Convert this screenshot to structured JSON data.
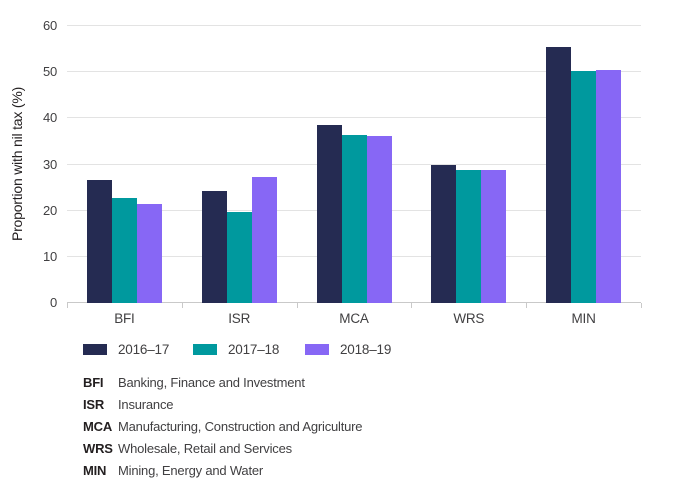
{
  "chart_data": {
    "type": "bar",
    "title": "",
    "xlabel": "",
    "ylabel": "Proportion with nil tax (%)",
    "ylim": [
      0,
      60
    ],
    "yticks": [
      0,
      10,
      20,
      30,
      40,
      50,
      60
    ],
    "grid": true,
    "legend_position": "bottom",
    "categories": [
      "BFI",
      "ISR",
      "MCA",
      "WRS",
      "MIN"
    ],
    "series": [
      {
        "name": "2016–17",
        "color": "#252b52",
        "values": [
          26.7,
          24.3,
          38.6,
          30.0,
          55.4
        ]
      },
      {
        "name": "2017–18",
        "color": "#00999e",
        "values": [
          22.8,
          19.8,
          36.5,
          28.9,
          50.3
        ]
      },
      {
        "name": "2018–19",
        "color": "#8767f5",
        "values": [
          21.4,
          27.3,
          36.1,
          28.8,
          50.4
        ]
      }
    ]
  },
  "footnotes": [
    {
      "abbr": "BFI",
      "description": "Banking, Finance and Investment"
    },
    {
      "abbr": "ISR",
      "description": "Insurance"
    },
    {
      "abbr": "MCA",
      "description": "Manufacturing, Construction and Agriculture"
    },
    {
      "abbr": "WRS",
      "description": "Wholesale, Retail and Services"
    },
    {
      "abbr": "MIN",
      "description": "Mining, Energy and Water"
    }
  ],
  "colors": {
    "gridline": "#e3e3e3",
    "axis": "#c9c9c9",
    "tick_label": "#414042",
    "text": "#231f20"
  }
}
